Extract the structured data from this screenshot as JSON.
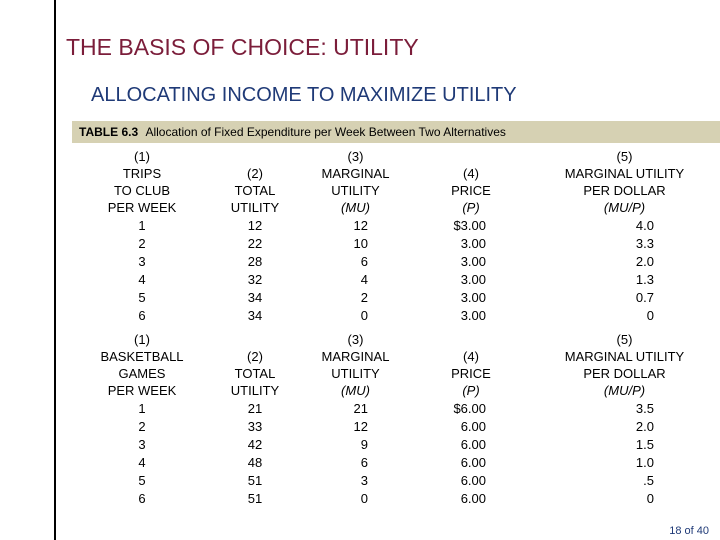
{
  "slide": {
    "title": "THE BASIS OF CHOICE: UTILITY",
    "subtitle": "ALLOCATING INCOME TO MAXIMIZE UTILITY",
    "table_caption": {
      "number": "TABLE 6.3",
      "text": "Allocation of Fixed Expenditure per Week Between Two Alternatives"
    },
    "page_indicator": "18 of 40"
  },
  "table1": {
    "headers": [
      [
        "(1)",
        "TRIPS",
        "TO CLUB",
        "PER WEEK"
      ],
      [
        "(2)",
        "TOTAL",
        "UTILITY"
      ],
      [
        "(3)",
        "MARGINAL",
        "UTILITY",
        "(MU)"
      ],
      [
        "(4)",
        "PRICE",
        "(P)"
      ],
      [
        "(5)",
        "MARGINAL UTILITY",
        "PER DOLLAR",
        "(MU/P)"
      ]
    ],
    "columns": [
      [
        "1",
        "2",
        "3",
        "4",
        "5",
        "6"
      ],
      [
        "12",
        "22",
        "28",
        "32",
        "34",
        "34"
      ],
      [
        "12",
        "10",
        "6",
        "4",
        "2",
        "0"
      ],
      [
        "$3.00",
        "3.00",
        "3.00",
        "3.00",
        "3.00",
        "3.00"
      ],
      [
        "4.0",
        "3.3",
        "2.0",
        "1.3",
        "0.7",
        "0"
      ]
    ]
  },
  "table2": {
    "headers": [
      [
        "(1)",
        "BASKETBALL",
        "GAMES",
        "PER WEEK"
      ],
      [
        "(2)",
        "TOTAL",
        "UTILITY"
      ],
      [
        "(3)",
        "MARGINAL",
        "UTILITY",
        "(MU)"
      ],
      [
        "(4)",
        "PRICE",
        "(P)"
      ],
      [
        "(5)",
        "MARGINAL UTILITY",
        "PER DOLLAR",
        "(MU/P)"
      ]
    ],
    "columns": [
      [
        "1",
        "2",
        "3",
        "4",
        "5",
        "6"
      ],
      [
        "21",
        "33",
        "42",
        "48",
        "51",
        "51"
      ],
      [
        "21",
        "12",
        "9",
        "6",
        "3",
        "0"
      ],
      [
        "$6.00",
        "6.00",
        "6.00",
        "6.00",
        "6.00",
        "6.00"
      ],
      [
        "3.5",
        "2.0",
        "1.5",
        "1.0",
        ".5",
        "0"
      ]
    ]
  }
}
